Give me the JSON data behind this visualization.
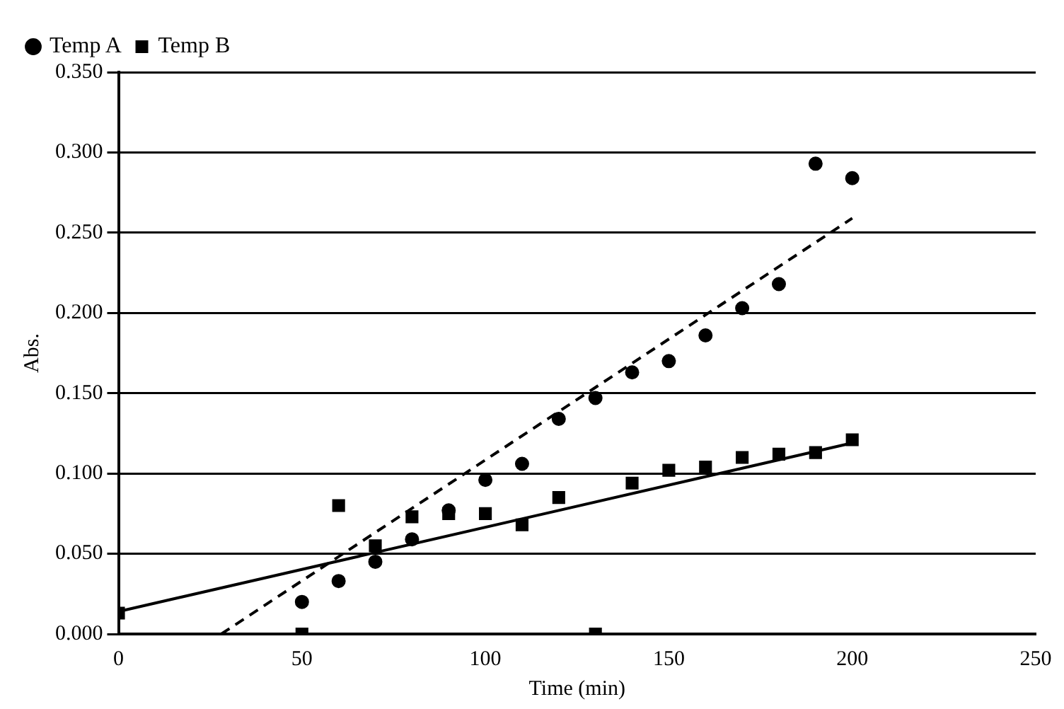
{
  "chart_data": {
    "type": "scatter",
    "xlabel": "Time (min)",
    "ylabel": "Abs.",
    "xlim": [
      0,
      250
    ],
    "xticks": [
      0,
      50,
      100,
      150,
      200,
      250
    ],
    "ylim": [
      0,
      0.35
    ],
    "yticks": [
      {
        "value": 0,
        "label": "0.000"
      },
      {
        "value": 0.05,
        "label": "0.050"
      },
      {
        "value": 0.1,
        "label": "0.100"
      },
      {
        "value": 0.15,
        "label": "0.150"
      },
      {
        "value": 0.2,
        "label": "0.200"
      },
      {
        "value": 0.25,
        "label": "0.250"
      },
      {
        "value": 0.3,
        "label": "0.300"
      },
      {
        "value": 0.35,
        "label": "0.350"
      }
    ],
    "grid": "y",
    "legend": "top left",
    "series": [
      {
        "name": "Temp A",
        "color": "#000000",
        "marker": "circle",
        "x": [
          50,
          60,
          70,
          80,
          90,
          100,
          110,
          120,
          130,
          140,
          150,
          160,
          170,
          180,
          190,
          200
        ],
        "values": [
          0.02,
          0.033,
          0.045,
          0.059,
          0.077,
          0.096,
          0.106,
          0.134,
          0.147,
          0.163,
          0.17,
          0.186,
          0.203,
          0.218,
          0.293,
          0.284
        ]
      },
      {
        "name": "Temp B",
        "color": "#000000",
        "marker": "square",
        "x": [
          0,
          50,
          60,
          70,
          80,
          90,
          100,
          110,
          120,
          130,
          140,
          150,
          160,
          170,
          180,
          190,
          200
        ],
        "values": [
          0.013,
          0,
          0.08,
          0.055,
          0.073,
          0.075,
          0.075,
          0.068,
          0.085,
          0,
          0.094,
          0.102,
          0.104,
          0.11,
          0.112,
          0.113,
          0.121
        ]
      },
      {
        "type": "line",
        "color": "#000000",
        "line_style": "dashed",
        "marker": "none",
        "x": [
          28,
          200
        ],
        "values": [
          0,
          0.259
        ]
      },
      {
        "type": "line",
        "color": "#000000",
        "line_style": "solid",
        "marker": "none",
        "x": [
          0,
          200
        ],
        "values": [
          0.014,
          0.119
        ]
      }
    ]
  }
}
